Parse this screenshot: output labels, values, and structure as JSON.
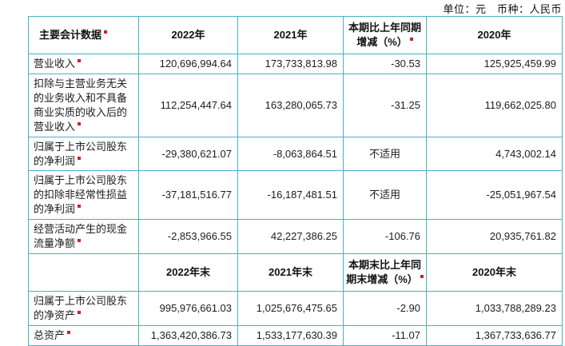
{
  "unit_line": "单位：元　币种：人民币",
  "colors": {
    "border": "#47b2c3",
    "mark": "#cc2222"
  },
  "table": {
    "header_period": [
      {
        "text": "主要会计数据",
        "mark": true
      },
      {
        "text": "2022年",
        "mark": false
      },
      {
        "text": "2021年",
        "mark": false
      },
      {
        "text": "本期比上年同期增减（%）",
        "mark": true
      },
      {
        "text": "2020年",
        "mark": false
      }
    ],
    "rows_period": [
      {
        "label": "营业收入",
        "mark": true,
        "values": [
          "120,696,994.64",
          "173,733,813.98",
          "-30.53",
          "125,925,459.99"
        ]
      },
      {
        "label": "扣除与主营业务无关的业务收入和不具备商业实质的收入后的营业收入",
        "mark": true,
        "values": [
          "112,254,447.64",
          "163,280,065.73",
          "-31.25",
          "119,662,025.80"
        ]
      },
      {
        "label": "归属于上市公司股东的净利润",
        "mark": true,
        "values": [
          "-29,380,621.07",
          "-8,063,864.51",
          "不适用",
          "4,743,002.14"
        ]
      },
      {
        "label": "归属于上市公司股东的扣除非经常性损益的净利润",
        "mark": true,
        "values": [
          "-37,181,516.77",
          "-16,187,481.51",
          "不适用",
          "-25,051,967.54"
        ]
      },
      {
        "label": "经营活动产生的现金流量净额",
        "mark": true,
        "values": [
          "-2,853,966.55",
          "42,227,386.25",
          "-106.76",
          "20,935,761.82"
        ]
      }
    ],
    "header_end": [
      {
        "text": "",
        "mark": false
      },
      {
        "text": "2022年末",
        "mark": false
      },
      {
        "text": "2021年末",
        "mark": false
      },
      {
        "text": "本期末比上年同期末增减（%）",
        "mark": true
      },
      {
        "text": "2020年末",
        "mark": false
      }
    ],
    "rows_end": [
      {
        "label": "归属于上市公司股东的净资产",
        "mark": true,
        "values": [
          "995,976,661.03",
          "1,025,676,475.65",
          "-2.90",
          "1,033,788,289.23"
        ]
      },
      {
        "label": "总资产",
        "mark": true,
        "values": [
          "1,363,420,386.73",
          "1,533,177,630.39",
          "-11.07",
          "1,367,733,636.77"
        ]
      }
    ]
  }
}
